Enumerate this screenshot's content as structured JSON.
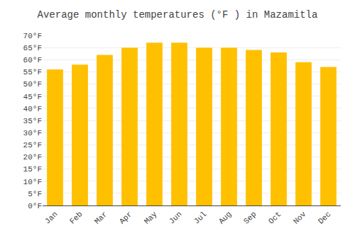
{
  "chart_data": {
    "type": "bar",
    "title": "Average monthly temperatures (°F ) in Mazamitla",
    "categories": [
      "Jan",
      "Feb",
      "Mar",
      "Apr",
      "May",
      "Jun",
      "Jul",
      "Aug",
      "Sep",
      "Oct",
      "Nov",
      "Dec"
    ],
    "values": [
      56,
      58,
      62,
      65,
      67,
      67,
      65,
      65,
      64,
      63,
      59,
      57
    ],
    "color": "#FFC000",
    "ylim": [
      0,
      70
    ],
    "yticks": [
      {
        "value": 0,
        "label": "0°F"
      },
      {
        "value": 5,
        "label": "5°F"
      },
      {
        "value": 10,
        "label": "10°F"
      },
      {
        "value": 15,
        "label": "15°F"
      },
      {
        "value": 20,
        "label": "20°F"
      },
      {
        "value": 25,
        "label": "25°F"
      },
      {
        "value": 30,
        "label": "30°F"
      },
      {
        "value": 35,
        "label": "35°F"
      },
      {
        "value": 40,
        "label": "40°F"
      },
      {
        "value": 45,
        "label": "45°F"
      },
      {
        "value": 50,
        "label": "50°F"
      },
      {
        "value": 55,
        "label": "55°F"
      },
      {
        "value": 60,
        "label": "60°F"
      },
      {
        "value": 65,
        "label": "65°F"
      },
      {
        "value": 70,
        "label": "70°F"
      }
    ],
    "grid": true
  }
}
